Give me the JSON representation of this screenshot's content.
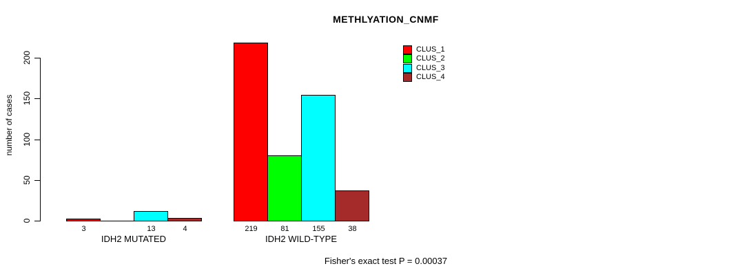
{
  "title": "METHLYATION_CNMF",
  "ylabel": "number of cases",
  "annotation": "Fisher's exact test P = 0.00037",
  "chart_data": {
    "type": "bar",
    "title": "METHLYATION_CNMF",
    "xlabel": "",
    "ylabel": "number of cases",
    "ylim": [
      0,
      220
    ],
    "yticks": [
      0,
      50,
      100,
      150,
      200
    ],
    "grid": false,
    "legend_position": "top-right",
    "categories": [
      "IDH2 MUTATED",
      "IDH2 WILD-TYPE"
    ],
    "series": [
      {
        "name": "CLUS_1",
        "color": "#FF0000",
        "values": [
          3,
          219
        ],
        "bar_labels": [
          "3",
          "219"
        ]
      },
      {
        "name": "CLUS_2",
        "color": "#00FF00",
        "values": [
          0,
          81
        ],
        "bar_labels": [
          "",
          "81"
        ]
      },
      {
        "name": "CLUS_3",
        "color": "#00FFFF",
        "values": [
          13,
          155
        ],
        "bar_labels": [
          "13",
          "155"
        ]
      },
      {
        "name": "CLUS_4",
        "color": "#A52A2A",
        "values": [
          4,
          38
        ],
        "bar_labels": [
          "4",
          "38"
        ]
      }
    ],
    "annotation": "Fisher's exact test P = 0.00037"
  },
  "legend": {
    "items": [
      {
        "label": "CLUS_1",
        "color": "#FF0000"
      },
      {
        "label": "CLUS_2",
        "color": "#00FF00"
      },
      {
        "label": "CLUS_3",
        "color": "#00FFFF"
      },
      {
        "label": "CLUS_4",
        "color": "#A52A2A"
      }
    ]
  }
}
